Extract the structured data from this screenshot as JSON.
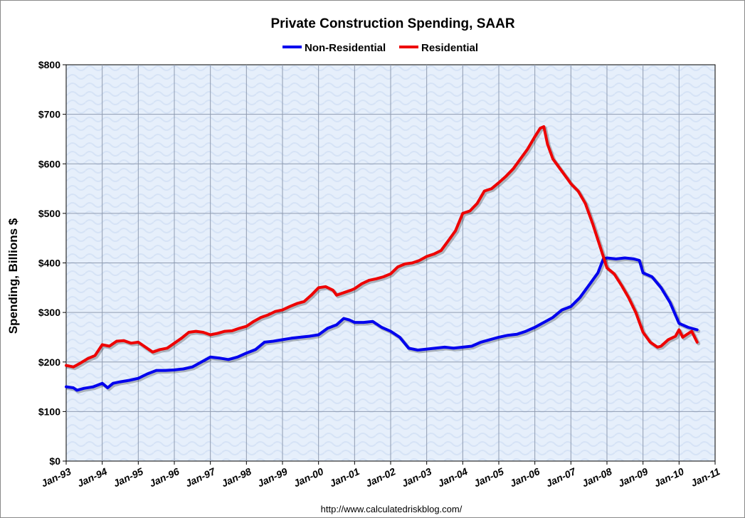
{
  "chart_data": {
    "type": "line",
    "title": "Private Construction Spending, SAAR",
    "xlabel": "",
    "ylabel": "Spending, Billions $",
    "ylim": [
      0,
      800
    ],
    "xlim": [
      1993.0,
      2011.0
    ],
    "yticks": [
      {
        "value": 0,
        "label": "$0"
      },
      {
        "value": 100,
        "label": "$100"
      },
      {
        "value": 200,
        "label": "$200"
      },
      {
        "value": 300,
        "label": "$300"
      },
      {
        "value": 400,
        "label": "$400"
      },
      {
        "value": 500,
        "label": "$500"
      },
      {
        "value": 600,
        "label": "$600"
      },
      {
        "value": 700,
        "label": "$700"
      },
      {
        "value": 800,
        "label": "$800"
      }
    ],
    "xticks": [
      {
        "value": 1993,
        "label": "Jan-93"
      },
      {
        "value": 1994,
        "label": "Jan-94"
      },
      {
        "value": 1995,
        "label": "Jan-95"
      },
      {
        "value": 1996,
        "label": "Jan-96"
      },
      {
        "value": 1997,
        "label": "Jan-97"
      },
      {
        "value": 1998,
        "label": "Jan-98"
      },
      {
        "value": 1999,
        "label": "Jan-99"
      },
      {
        "value": 2000,
        "label": "Jan-00"
      },
      {
        "value": 2001,
        "label": "Jan-01"
      },
      {
        "value": 2002,
        "label": "Jan-02"
      },
      {
        "value": 2003,
        "label": "Jan-03"
      },
      {
        "value": 2004,
        "label": "Jan-04"
      },
      {
        "value": 2005,
        "label": "Jan-05"
      },
      {
        "value": 2006,
        "label": "Jan-06"
      },
      {
        "value": 2007,
        "label": "Jan-07"
      },
      {
        "value": 2008,
        "label": "Jan-08"
      },
      {
        "value": 2009,
        "label": "Jan-09"
      },
      {
        "value": 2010,
        "label": "Jan-10"
      },
      {
        "value": 2011,
        "label": "Jan-11"
      }
    ],
    "grid": true,
    "legend_position": "top-center",
    "series": [
      {
        "name": "Non-Residential",
        "color": "#0000ee",
        "points": [
          [
            1993.0,
            150
          ],
          [
            1993.2,
            148
          ],
          [
            1993.3,
            143
          ],
          [
            1993.5,
            147
          ],
          [
            1993.75,
            150
          ],
          [
            1994.0,
            157
          ],
          [
            1994.15,
            148
          ],
          [
            1994.3,
            157
          ],
          [
            1994.5,
            160
          ],
          [
            1994.75,
            163
          ],
          [
            1995.0,
            167
          ],
          [
            1995.25,
            176
          ],
          [
            1995.5,
            183
          ],
          [
            1995.75,
            183
          ],
          [
            1996.0,
            184
          ],
          [
            1996.25,
            186
          ],
          [
            1996.5,
            190
          ],
          [
            1996.75,
            200
          ],
          [
            1997.0,
            210
          ],
          [
            1997.25,
            208
          ],
          [
            1997.5,
            205
          ],
          [
            1997.75,
            210
          ],
          [
            1998.0,
            218
          ],
          [
            1998.25,
            225
          ],
          [
            1998.5,
            240
          ],
          [
            1998.75,
            242
          ],
          [
            1999.0,
            245
          ],
          [
            1999.25,
            248
          ],
          [
            1999.5,
            250
          ],
          [
            1999.75,
            252
          ],
          [
            2000.0,
            255
          ],
          [
            2000.25,
            268
          ],
          [
            2000.5,
            275
          ],
          [
            2000.7,
            288
          ],
          [
            2000.85,
            285
          ],
          [
            2001.0,
            280
          ],
          [
            2001.25,
            280
          ],
          [
            2001.5,
            282
          ],
          [
            2001.75,
            270
          ],
          [
            2002.0,
            262
          ],
          [
            2002.25,
            250
          ],
          [
            2002.5,
            228
          ],
          [
            2002.75,
            224
          ],
          [
            2003.0,
            226
          ],
          [
            2003.25,
            228
          ],
          [
            2003.5,
            230
          ],
          [
            2003.75,
            228
          ],
          [
            2004.0,
            230
          ],
          [
            2004.25,
            232
          ],
          [
            2004.5,
            240
          ],
          [
            2004.75,
            245
          ],
          [
            2005.0,
            250
          ],
          [
            2005.25,
            254
          ],
          [
            2005.5,
            256
          ],
          [
            2005.75,
            262
          ],
          [
            2006.0,
            270
          ],
          [
            2006.25,
            280
          ],
          [
            2006.5,
            290
          ],
          [
            2006.75,
            305
          ],
          [
            2007.0,
            312
          ],
          [
            2007.25,
            330
          ],
          [
            2007.5,
            355
          ],
          [
            2007.75,
            380
          ],
          [
            2007.9,
            408
          ],
          [
            2008.0,
            410
          ],
          [
            2008.25,
            408
          ],
          [
            2008.5,
            410
          ],
          [
            2008.75,
            408
          ],
          [
            2008.9,
            405
          ],
          [
            2009.0,
            380
          ],
          [
            2009.25,
            372
          ],
          [
            2009.5,
            350
          ],
          [
            2009.75,
            320
          ],
          [
            2010.0,
            278
          ],
          [
            2010.25,
            270
          ],
          [
            2010.5,
            265
          ]
        ]
      },
      {
        "name": "Residential",
        "color": "#ee0000",
        "points": [
          [
            1993.0,
            193
          ],
          [
            1993.2,
            190
          ],
          [
            1993.4,
            198
          ],
          [
            1993.6,
            207
          ],
          [
            1993.8,
            213
          ],
          [
            1994.0,
            235
          ],
          [
            1994.2,
            232
          ],
          [
            1994.4,
            242
          ],
          [
            1994.6,
            243
          ],
          [
            1994.8,
            238
          ],
          [
            1995.0,
            240
          ],
          [
            1995.2,
            230
          ],
          [
            1995.4,
            220
          ],
          [
            1995.6,
            225
          ],
          [
            1995.8,
            228
          ],
          [
            1996.0,
            238
          ],
          [
            1996.2,
            248
          ],
          [
            1996.4,
            260
          ],
          [
            1996.6,
            262
          ],
          [
            1996.8,
            260
          ],
          [
            1997.0,
            255
          ],
          [
            1997.2,
            258
          ],
          [
            1997.4,
            262
          ],
          [
            1997.6,
            263
          ],
          [
            1997.8,
            268
          ],
          [
            1998.0,
            272
          ],
          [
            1998.2,
            282
          ],
          [
            1998.4,
            290
          ],
          [
            1998.6,
            295
          ],
          [
            1998.8,
            302
          ],
          [
            1999.0,
            305
          ],
          [
            1999.2,
            312
          ],
          [
            1999.4,
            318
          ],
          [
            1999.6,
            322
          ],
          [
            1999.8,
            335
          ],
          [
            2000.0,
            350
          ],
          [
            2000.2,
            352
          ],
          [
            2000.4,
            345
          ],
          [
            2000.5,
            335
          ],
          [
            2000.7,
            340
          ],
          [
            2000.9,
            345
          ],
          [
            2001.0,
            348
          ],
          [
            2001.2,
            358
          ],
          [
            2001.4,
            365
          ],
          [
            2001.6,
            368
          ],
          [
            2001.8,
            372
          ],
          [
            2002.0,
            378
          ],
          [
            2002.2,
            392
          ],
          [
            2002.4,
            398
          ],
          [
            2002.6,
            400
          ],
          [
            2002.8,
            405
          ],
          [
            2003.0,
            413
          ],
          [
            2003.2,
            418
          ],
          [
            2003.4,
            425
          ],
          [
            2003.6,
            445
          ],
          [
            2003.8,
            465
          ],
          [
            2004.0,
            500
          ],
          [
            2004.2,
            505
          ],
          [
            2004.4,
            520
          ],
          [
            2004.6,
            545
          ],
          [
            2004.8,
            550
          ],
          [
            2005.0,
            562
          ],
          [
            2005.2,
            575
          ],
          [
            2005.4,
            590
          ],
          [
            2005.6,
            610
          ],
          [
            2005.8,
            630
          ],
          [
            2006.0,
            655
          ],
          [
            2006.15,
            672
          ],
          [
            2006.25,
            675
          ],
          [
            2006.35,
            640
          ],
          [
            2006.5,
            610
          ],
          [
            2006.7,
            590
          ],
          [
            2006.9,
            570
          ],
          [
            2007.0,
            560
          ],
          [
            2007.2,
            545
          ],
          [
            2007.4,
            520
          ],
          [
            2007.6,
            480
          ],
          [
            2007.8,
            435
          ],
          [
            2008.0,
            390
          ],
          [
            2008.2,
            378
          ],
          [
            2008.4,
            355
          ],
          [
            2008.6,
            330
          ],
          [
            2008.8,
            300
          ],
          [
            2009.0,
            260
          ],
          [
            2009.2,
            240
          ],
          [
            2009.4,
            230
          ],
          [
            2009.5,
            232
          ],
          [
            2009.7,
            245
          ],
          [
            2009.9,
            252
          ],
          [
            2010.0,
            265
          ],
          [
            2010.1,
            250
          ],
          [
            2010.2,
            255
          ],
          [
            2010.35,
            262
          ],
          [
            2010.5,
            240
          ]
        ]
      }
    ]
  },
  "source_text": "http://www.calculatedriskblog.com/"
}
